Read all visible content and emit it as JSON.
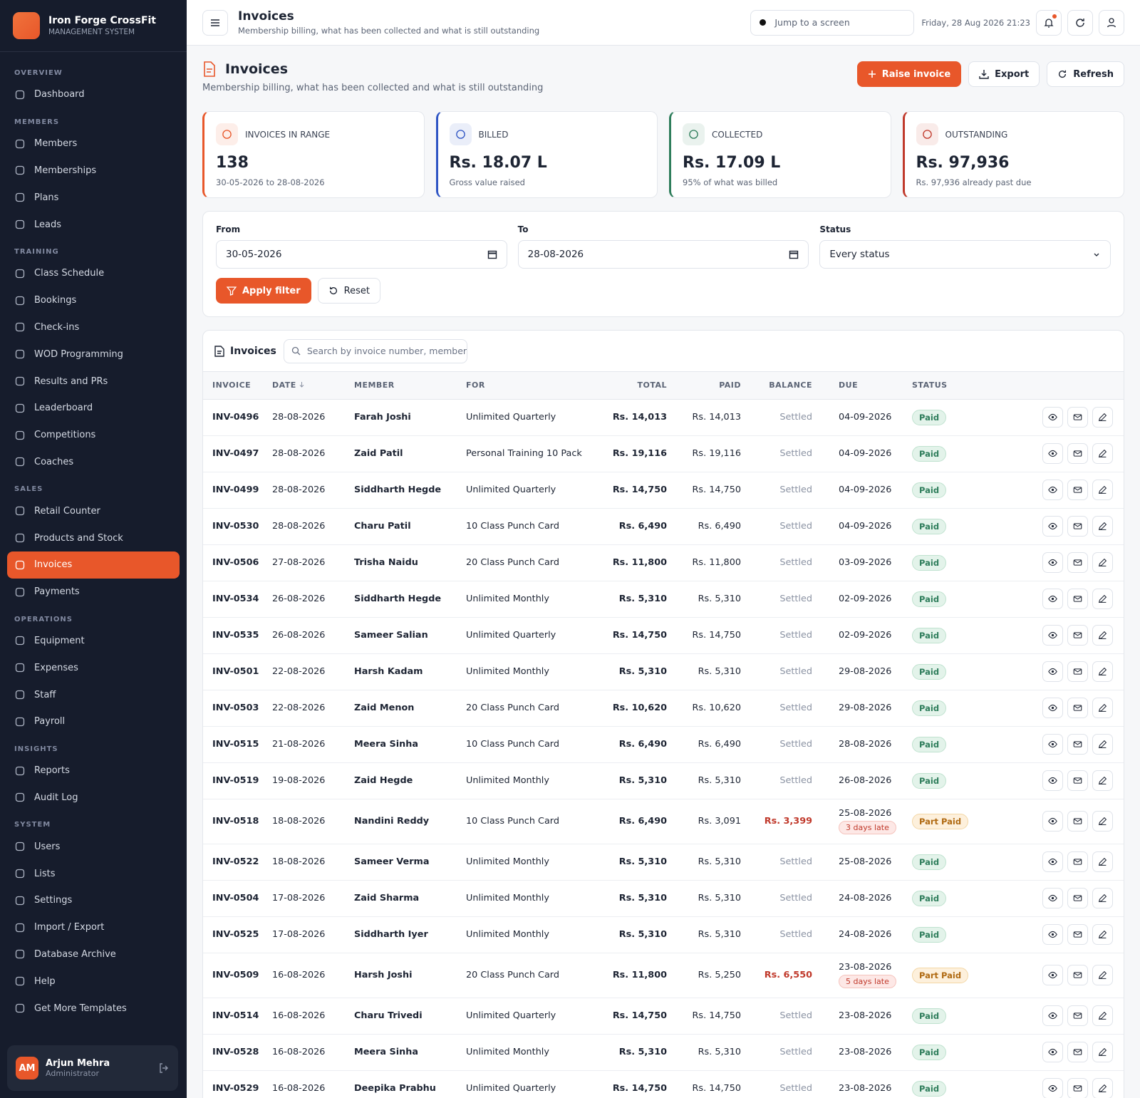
{
  "sidebar": {
    "brand": {
      "name": "Iron Forge CrossFit",
      "subtitle": "MANAGEMENT SYSTEM"
    },
    "sections": [
      {
        "title": "OVERVIEW",
        "items": [
          "Dashboard"
        ]
      },
      {
        "title": "MEMBERS",
        "items": [
          "Members",
          "Memberships",
          "Plans",
          "Leads"
        ]
      },
      {
        "title": "TRAINING",
        "items": [
          "Class Schedule",
          "Bookings",
          "Check-ins",
          "WOD Programming",
          "Results and PRs",
          "Leaderboard",
          "Competitions",
          "Coaches"
        ]
      },
      {
        "title": "SALES",
        "items": [
          "Retail Counter",
          "Products and Stock",
          "Invoices",
          "Payments"
        ]
      },
      {
        "title": "OPERATIONS",
        "items": [
          "Equipment",
          "Expenses",
          "Staff",
          "Payroll"
        ]
      },
      {
        "title": "INSIGHTS",
        "items": [
          "Reports",
          "Audit Log"
        ]
      },
      {
        "title": "SYSTEM",
        "items": [
          "Users",
          "Lists",
          "Settings",
          "Import / Export",
          "Database Archive",
          "Help",
          "Get More Templates"
        ]
      }
    ],
    "active": "Invoices",
    "user": {
      "initials": "AM",
      "name": "Arjun Mehra",
      "role": "Administrator"
    }
  },
  "topbar": {
    "title": "Invoices",
    "subtitle": "Membership billing, what has been collected and what is still outstanding",
    "search": "Jump to a screen",
    "datetime": "Friday, 28 Aug 2026 21:23"
  },
  "header": {
    "title": "Invoices",
    "subtitle": "Membership billing, what has been collected and what is still outstanding",
    "buttons": {
      "raise": "Raise invoice",
      "export": "Export",
      "refresh": "Refresh"
    }
  },
  "stats": [
    {
      "label": "INVOICES IN RANGE",
      "value": "138",
      "note": "30-05-2026 to 28-08-2026",
      "color": "#e8572a"
    },
    {
      "label": "BILLED",
      "value": "Rs. 18.07 L",
      "note": "Gross value raised",
      "color": "#2f55c4"
    },
    {
      "label": "COLLECTED",
      "value": "Rs. 17.09 L",
      "note": "95% of what was billed",
      "color": "#2e7d5b"
    },
    {
      "label": "OUTSTANDING",
      "value": "Rs. 97,936",
      "note": "Rs. 97,936 already past due",
      "color": "#c0392b"
    }
  ],
  "filter": {
    "from_label": "From",
    "from": "30-05-2026",
    "to_label": "To",
    "to": "28-08-2026",
    "status_label": "Status",
    "status": "Every status",
    "apply": "Apply filter",
    "reset": "Reset"
  },
  "table": {
    "title": "Invoices",
    "search": "Search by invoice number, member o",
    "columns": [
      "INVOICE",
      "DATE",
      "MEMBER",
      "FOR",
      "TOTAL",
      "PAID",
      "BALANCE",
      "DUE",
      "STATUS"
    ],
    "rows": [
      {
        "invoice": "INV-0496",
        "date": "28-08-2026",
        "member": "Farah Joshi",
        "plan": "Unlimited Quarterly",
        "total": "Rs. 14,013",
        "paid": "Rs. 14,013",
        "balance": "Settled",
        "due": "04-09-2026",
        "status": "Paid"
      },
      {
        "invoice": "INV-0497",
        "date": "28-08-2026",
        "member": "Zaid Patil",
        "plan": "Personal Training 10 Pack",
        "total": "Rs. 19,116",
        "paid": "Rs. 19,116",
        "balance": "Settled",
        "due": "04-09-2026",
        "status": "Paid"
      },
      {
        "invoice": "INV-0499",
        "date": "28-08-2026",
        "member": "Siddharth Hegde",
        "plan": "Unlimited Quarterly",
        "total": "Rs. 14,750",
        "paid": "Rs. 14,750",
        "balance": "Settled",
        "due": "04-09-2026",
        "status": "Paid"
      },
      {
        "invoice": "INV-0530",
        "date": "28-08-2026",
        "member": "Charu Patil",
        "plan": "10 Class Punch Card",
        "total": "Rs. 6,490",
        "paid": "Rs. 6,490",
        "balance": "Settled",
        "due": "04-09-2026",
        "status": "Paid"
      },
      {
        "invoice": "INV-0506",
        "date": "27-08-2026",
        "member": "Trisha Naidu",
        "plan": "20 Class Punch Card",
        "total": "Rs. 11,800",
        "paid": "Rs. 11,800",
        "balance": "Settled",
        "due": "03-09-2026",
        "status": "Paid"
      },
      {
        "invoice": "INV-0534",
        "date": "26-08-2026",
        "member": "Siddharth Hegde",
        "plan": "Unlimited Monthly",
        "total": "Rs. 5,310",
        "paid": "Rs. 5,310",
        "balance": "Settled",
        "due": "02-09-2026",
        "status": "Paid"
      },
      {
        "invoice": "INV-0535",
        "date": "26-08-2026",
        "member": "Sameer Salian",
        "plan": "Unlimited Quarterly",
        "total": "Rs. 14,750",
        "paid": "Rs. 14,750",
        "balance": "Settled",
        "due": "02-09-2026",
        "status": "Paid"
      },
      {
        "invoice": "INV-0501",
        "date": "22-08-2026",
        "member": "Harsh Kadam",
        "plan": "Unlimited Monthly",
        "total": "Rs. 5,310",
        "paid": "Rs. 5,310",
        "balance": "Settled",
        "due": "29-08-2026",
        "status": "Paid"
      },
      {
        "invoice": "INV-0503",
        "date": "22-08-2026",
        "member": "Zaid Menon",
        "plan": "20 Class Punch Card",
        "total": "Rs. 10,620",
        "paid": "Rs. 10,620",
        "balance": "Settled",
        "due": "29-08-2026",
        "status": "Paid"
      },
      {
        "invoice": "INV-0515",
        "date": "21-08-2026",
        "member": "Meera Sinha",
        "plan": "10 Class Punch Card",
        "total": "Rs. 6,490",
        "paid": "Rs. 6,490",
        "balance": "Settled",
        "due": "28-08-2026",
        "status": "Paid"
      },
      {
        "invoice": "INV-0519",
        "date": "19-08-2026",
        "member": "Zaid Hegde",
        "plan": "Unlimited Monthly",
        "total": "Rs. 5,310",
        "paid": "Rs. 5,310",
        "balance": "Settled",
        "due": "26-08-2026",
        "status": "Paid"
      },
      {
        "invoice": "INV-0518",
        "date": "18-08-2026",
        "member": "Nandini Reddy",
        "plan": "10 Class Punch Card",
        "total": "Rs. 6,490",
        "paid": "Rs. 3,091",
        "balance": "Rs. 3,399",
        "due": "25-08-2026",
        "late": "3 days late",
        "status": "Part Paid"
      },
      {
        "invoice": "INV-0522",
        "date": "18-08-2026",
        "member": "Sameer Verma",
        "plan": "Unlimited Monthly",
        "total": "Rs. 5,310",
        "paid": "Rs. 5,310",
        "balance": "Settled",
        "due": "25-08-2026",
        "status": "Paid"
      },
      {
        "invoice": "INV-0504",
        "date": "17-08-2026",
        "member": "Zaid Sharma",
        "plan": "Unlimited Monthly",
        "total": "Rs. 5,310",
        "paid": "Rs. 5,310",
        "balance": "Settled",
        "due": "24-08-2026",
        "status": "Paid"
      },
      {
        "invoice": "INV-0525",
        "date": "17-08-2026",
        "member": "Siddharth Iyer",
        "plan": "Unlimited Monthly",
        "total": "Rs. 5,310",
        "paid": "Rs. 5,310",
        "balance": "Settled",
        "due": "24-08-2026",
        "status": "Paid"
      },
      {
        "invoice": "INV-0509",
        "date": "16-08-2026",
        "member": "Harsh Joshi",
        "plan": "20 Class Punch Card",
        "total": "Rs. 11,800",
        "paid": "Rs. 5,250",
        "balance": "Rs. 6,550",
        "due": "23-08-2026",
        "late": "5 days late",
        "status": "Part Paid"
      },
      {
        "invoice": "INV-0514",
        "date": "16-08-2026",
        "member": "Charu Trivedi",
        "plan": "Unlimited Quarterly",
        "total": "Rs. 14,750",
        "paid": "Rs. 14,750",
        "balance": "Settled",
        "due": "23-08-2026",
        "status": "Paid"
      },
      {
        "invoice": "INV-0528",
        "date": "16-08-2026",
        "member": "Meera Sinha",
        "plan": "Unlimited Monthly",
        "total": "Rs. 5,310",
        "paid": "Rs. 5,310",
        "balance": "Settled",
        "due": "23-08-2026",
        "status": "Paid"
      },
      {
        "invoice": "INV-0529",
        "date": "16-08-2026",
        "member": "Deepika Prabhu",
        "plan": "Unlimited Quarterly",
        "total": "Rs. 14,750",
        "paid": "Rs. 14,750",
        "balance": "Settled",
        "due": "23-08-2026",
        "status": "Paid"
      }
    ]
  }
}
